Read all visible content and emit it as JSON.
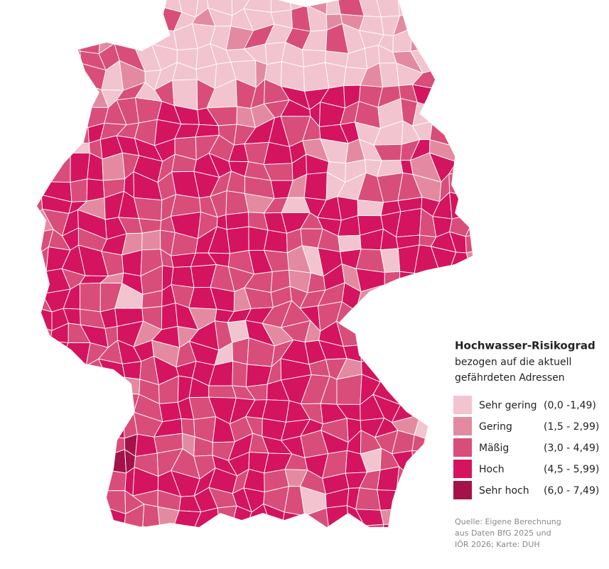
{
  "legend": {
    "title": "Hochwasser-Risikograd",
    "subtitle": [
      "bezogen auf die aktuell",
      "gefährdeten Adressen"
    ],
    "classes": [
      {
        "label": "Sehr gering",
        "range": "(0,0 -1,49)",
        "color": "#f2c4cf"
      },
      {
        "label": "Gering",
        "range": "(1,5 - 2,99)",
        "color": "#e38aa1"
      },
      {
        "label": "Mäßig",
        "range": "(3,0 - 4,49)",
        "color": "#d94d7b"
      },
      {
        "label": "Hoch",
        "range": "(4,5 - 5,99)",
        "color": "#d4145f"
      },
      {
        "label": "Sehr hoch",
        "range": "(6,0 - 7,49)",
        "color": "#a3134a"
      }
    ]
  },
  "source": [
    "Quelle: Eigene Berechnung",
    "aus Daten BfG 2025 und",
    "IÖR 2026; Karte: DUH"
  ]
}
